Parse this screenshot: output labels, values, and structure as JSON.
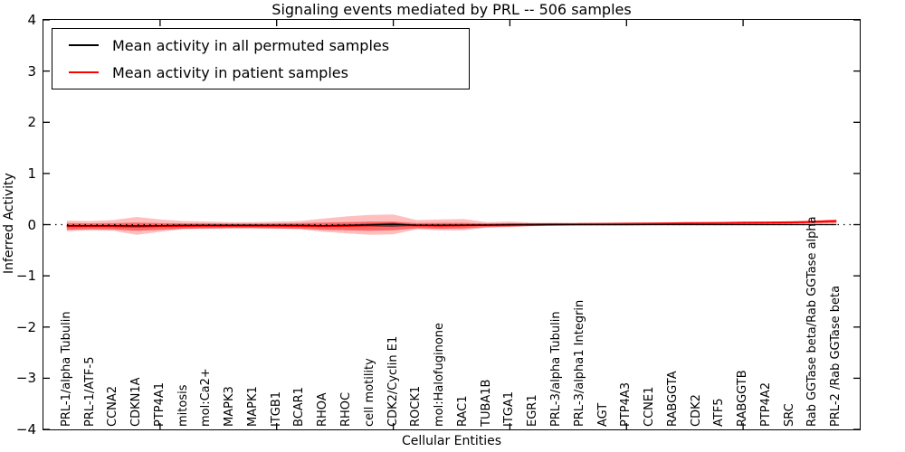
{
  "title": "Signaling events mediated by PRL -- 506 samples",
  "axes": {
    "xlabel": "Cellular Entities",
    "ylabel": "Inferred Activity",
    "yticks": [
      "4",
      "3",
      "2",
      "1",
      "0",
      "−1",
      "−2",
      "−3",
      "−4"
    ]
  },
  "legend": {
    "items": [
      {
        "label": "Mean activity in all permuted samples",
        "color": "#000000"
      },
      {
        "label": "Mean activity in patient samples",
        "color": "#ff0000"
      }
    ]
  },
  "chart_data": {
    "type": "line",
    "title": "Signaling events mediated by PRL -- 506 samples",
    "xlabel": "Cellular Entities",
    "ylabel": "Inferred Activity",
    "ylim": [
      -4,
      4
    ],
    "xlim": [
      0,
      35
    ],
    "xticks": [
      5,
      10,
      15,
      20,
      25,
      30
    ],
    "grid": false,
    "legend_position": "upper left",
    "zero_line": 0,
    "categories": [
      "PRL-1/alpha Tubulin",
      "PRL-1/ATF-5",
      "CCNA2",
      "CDKN1A",
      "PTP4A1",
      "mitosis",
      "mol:Ca2+",
      "MAPK3",
      "MAPK1",
      "ITGB1",
      "BCAR1",
      "RHOA",
      "RHOC",
      "cell motility",
      "CDK2/Cyclin E1",
      "ROCK1",
      "mol:Halofuginone",
      "RAC1",
      "TUBA1B",
      "ITGA1",
      "EGR1",
      "PRL-3/alpha Tubulin",
      "PRL-3/alpha1 Integrin",
      "AGT",
      "PTP4A3",
      "CCNE1",
      "RABGGTA",
      "CDK2",
      "ATF5",
      "RABGGTB",
      "PTP4A2",
      "SRC",
      "Rab GGTase beta/Rab GGTase alpha",
      "PRL-2 /Rab GGTase beta"
    ],
    "series": [
      {
        "name": "Mean activity in all permuted samples",
        "color": "#000000",
        "values": [
          -0.02,
          -0.02,
          -0.02,
          -0.025,
          -0.02,
          -0.015,
          -0.015,
          -0.012,
          -0.012,
          -0.015,
          -0.015,
          -0.02,
          -0.015,
          -0.005,
          0.005,
          -0.01,
          -0.012,
          -0.01,
          -0.008,
          -0.005,
          -0.005,
          -0.003,
          -0.002,
          -0.002,
          -0.001,
          0,
          0,
          0,
          0,
          0,
          0,
          0,
          0,
          0
        ]
      },
      {
        "name": "Mean activity in patient samples",
        "color": "#ff0000",
        "values": [
          -0.03,
          -0.03,
          -0.03,
          -0.035,
          -0.03,
          -0.025,
          -0.022,
          -0.02,
          -0.02,
          -0.022,
          -0.025,
          -0.03,
          -0.025,
          -0.015,
          -0.005,
          -0.015,
          -0.018,
          -0.012,
          -0.005,
          0,
          0.005,
          0.008,
          0.01,
          0.015,
          0.018,
          0.02,
          0.025,
          0.03,
          0.032,
          0.038,
          0.04,
          0.045,
          0.055,
          0.07
        ]
      }
    ],
    "bands": {
      "outer_fill": "rgba(255,0,0,0.25)",
      "outer_top": [
        0.08,
        0.07,
        0.09,
        0.15,
        0.1,
        0.07,
        0.06,
        0.05,
        0.05,
        0.06,
        0.07,
        0.12,
        0.16,
        0.19,
        0.2,
        0.09,
        0.1,
        0.11,
        0.05,
        0.06,
        0.04,
        0.035,
        0.03,
        0.03,
        0.03,
        0.03,
        0.035,
        0.04,
        0.04,
        0.045,
        0.05,
        0.05,
        0.08,
        0.1
      ],
      "outer_bottom": [
        -0.13,
        -0.11,
        -0.12,
        -0.2,
        -0.14,
        -0.09,
        -0.08,
        -0.07,
        -0.07,
        -0.08,
        -0.09,
        -0.14,
        -0.17,
        -0.2,
        -0.19,
        -0.09,
        -0.11,
        -0.11,
        -0.06,
        -0.05,
        -0.03,
        -0.02,
        -0.015,
        -0.01,
        -0.005,
        0,
        0,
        0,
        0.005,
        0.01,
        0.01,
        0.015,
        0.02,
        0.02
      ],
      "inner_fill": "rgba(255,0,0,0.45)",
      "inner_top": [
        0.03,
        0.025,
        0.03,
        0.04,
        0.03,
        0.025,
        0.025,
        0.02,
        0.02,
        0.025,
        0.03,
        0.04,
        0.05,
        0.06,
        0.06,
        0.03,
        0.035,
        0.035,
        0.02,
        0.025,
        0.02,
        0.02,
        0.02,
        0.02,
        0.02,
        0.025,
        0.025,
        0.03,
        0.03,
        0.035,
        0.035,
        0.04,
        0.07,
        0.09
      ],
      "inner_bottom": [
        -0.1,
        -0.09,
        -0.095,
        -0.12,
        -0.1,
        -0.08,
        -0.075,
        -0.07,
        -0.07,
        -0.075,
        -0.08,
        -0.1,
        -0.11,
        -0.12,
        -0.11,
        -0.07,
        -0.08,
        -0.075,
        -0.05,
        -0.04,
        -0.025,
        -0.015,
        -0.01,
        -0.005,
        0,
        0,
        0.005,
        0.005,
        0.01,
        0.01,
        0.015,
        0.02,
        0.03,
        0.04
      ],
      "dark_fill": "rgba(0,0,0,0.45)",
      "dark_top": [
        -0.015,
        -0.015,
        -0.015,
        -0.02,
        -0.015,
        -0.01,
        -0.01,
        -0.008,
        -0.008,
        -0.01,
        -0.01,
        -0.012,
        0.0,
        0.02,
        0.035,
        0.0,
        -0.005,
        -0.005,
        0.0,
        0.005,
        0.0,
        -0.003,
        -0.002,
        -0.002,
        -0.001,
        0,
        0,
        0,
        0,
        0,
        0,
        0,
        0,
        0
      ],
      "dark_bottom": [
        -0.025,
        -0.025,
        -0.025,
        -0.03,
        -0.025,
        -0.02,
        -0.02,
        -0.016,
        -0.016,
        -0.02,
        -0.02,
        -0.028,
        -0.03,
        -0.035,
        -0.045,
        -0.02,
        -0.02,
        -0.015,
        -0.015,
        -0.018,
        -0.01,
        -0.003,
        -0.002,
        -0.002,
        -0.001,
        0,
        0,
        0,
        0,
        0,
        0,
        0,
        0,
        0
      ]
    }
  }
}
